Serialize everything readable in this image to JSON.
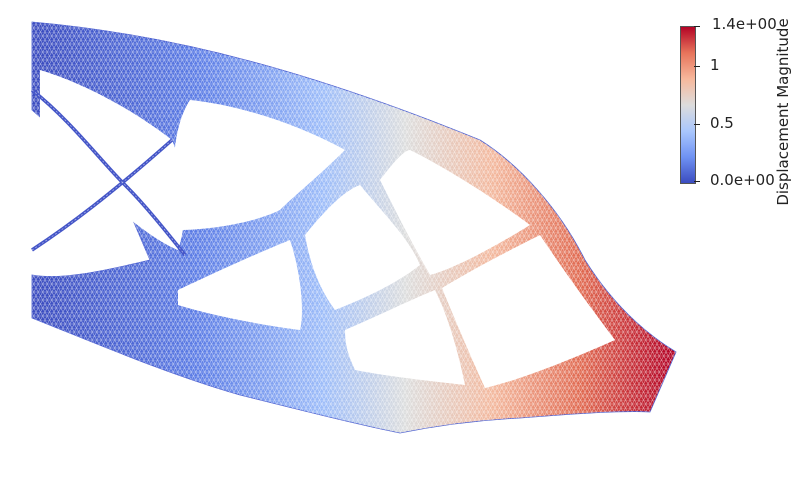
{
  "colorbar": {
    "title": "Displacement Magnitude",
    "ticks": [
      {
        "label": "1.4e+00",
        "value": 1.4
      },
      {
        "label": "1",
        "value": 1.0
      },
      {
        "label": "0.5",
        "value": 0.5
      },
      {
        "label": "0.0e+00",
        "value": 0.0
      }
    ],
    "range": [
      0.0,
      1.4
    ],
    "colormap": [
      "#3b4cc0",
      "#6f92f3",
      "#aac7fd",
      "#dddcdc",
      "#f7b89c",
      "#e7745b",
      "#b40426"
    ]
  }
}
